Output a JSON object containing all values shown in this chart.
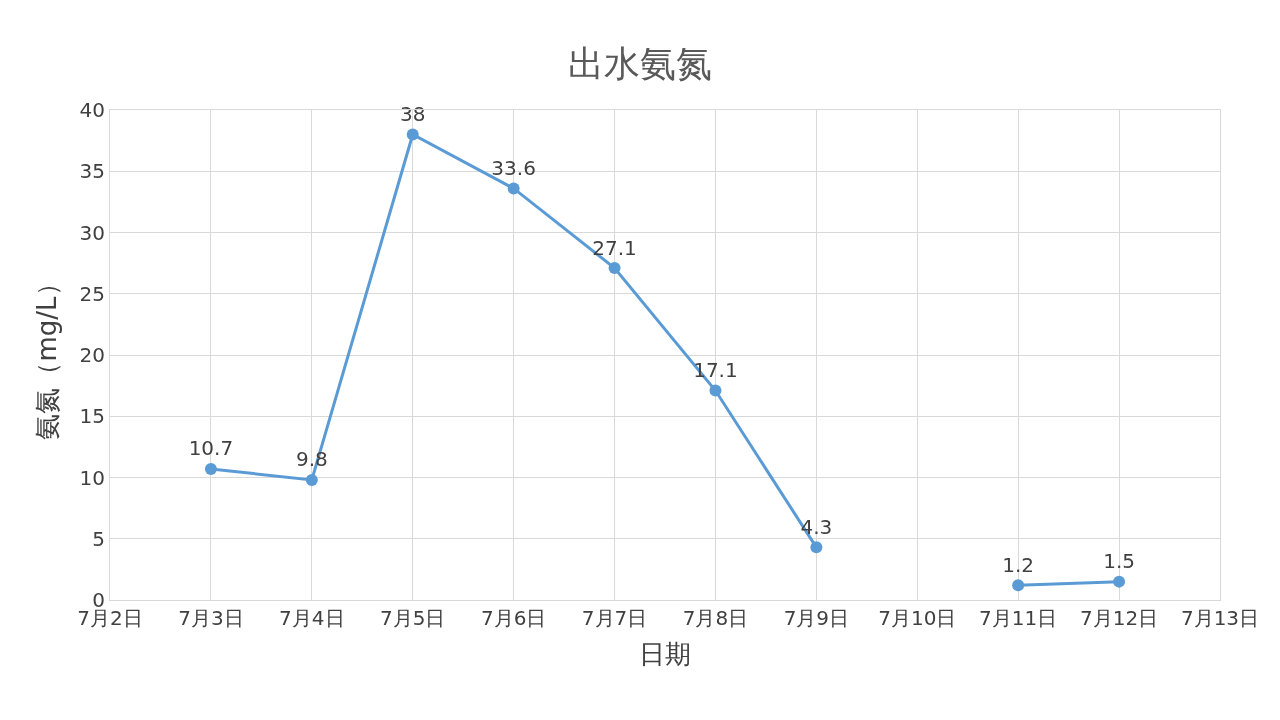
{
  "chart_data": {
    "type": "line",
    "title": "出水氨氮",
    "xlabel": "日期",
    "ylabel": "氨氮（mg/L）",
    "x": [
      "--07-03",
      "--07-04",
      "--07-05",
      "--07-06",
      "--07-07",
      "--07-08",
      "--07-09",
      "--07-10",
      "--07-11",
      "--07-12"
    ],
    "series": [
      {
        "color": "#5b9bd5",
        "values": [
          10.7,
          9.8,
          38,
          33.6,
          27.1,
          17.1,
          4.3,
          null,
          1.2,
          1.5
        ]
      }
    ],
    "xlim": [
      "--07-02",
      "--07-13"
    ],
    "xticks": [
      {
        "value": "--07-02",
        "label": "7月2日"
      },
      {
        "value": "--07-03",
        "label": "7月3日"
      },
      {
        "value": "--07-04",
        "label": "7月4日"
      },
      {
        "value": "--07-05",
        "label": "7月5日"
      },
      {
        "value": "--07-06",
        "label": "7月6日"
      },
      {
        "value": "--07-07",
        "label": "7月7日"
      },
      {
        "value": "--07-08",
        "label": "7月8日"
      },
      {
        "value": "--07-09",
        "label": "7月9日"
      },
      {
        "value": "--07-10",
        "label": "7月10日"
      },
      {
        "value": "--07-11",
        "label": "7月11日"
      },
      {
        "value": "--07-12",
        "label": "7月12日"
      },
      {
        "value": "--07-13",
        "label": "7月13日"
      }
    ],
    "ylim": [
      0,
      40
    ],
    "yticks": [
      0,
      5,
      10,
      15,
      20,
      25,
      30,
      35,
      40
    ],
    "grid": true,
    "legend": false,
    "marker": "circle",
    "line_style": "solid",
    "data_labels": true
  }
}
